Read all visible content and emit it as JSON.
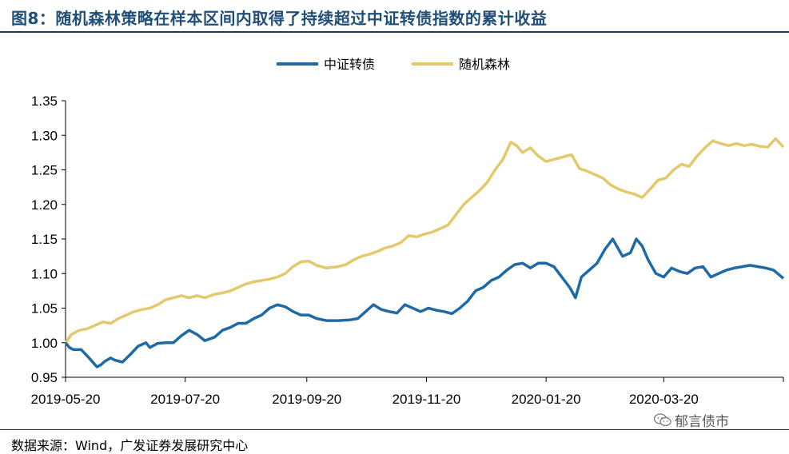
{
  "header": {
    "title": "图8：随机森林策略在样本区间内取得了持续超过中证转债指数的累计收益"
  },
  "footer": {
    "source": "数据来源：Wind，广发证券发展研究中心",
    "watermark": "郁言债市",
    "watermark_icon": "wechat-icon"
  },
  "colors": {
    "title": "#1f4e79",
    "rule": "#1f3864",
    "series_blue": "#1f6aa5",
    "series_gold": "#e3c96b"
  },
  "chart_data": {
    "type": "line",
    "title": "",
    "xlabel": "",
    "ylabel": "",
    "ylim": [
      0.95,
      1.35
    ],
    "yticks": [
      0.95,
      1.0,
      1.05,
      1.1,
      1.15,
      1.2,
      1.25,
      1.3,
      1.35
    ],
    "ytick_labels": [
      "0.95",
      "1.00",
      "1.05",
      "1.10",
      "1.15",
      "1.20",
      "1.25",
      "1.30",
      "1.35"
    ],
    "xlim": [
      "2019-05-20",
      "2020-05-20"
    ],
    "xticks": [
      "2019-05-20",
      "2019-07-20",
      "2019-09-20",
      "2019-11-20",
      "2020-01-20",
      "2020-03-20"
    ],
    "grid": false,
    "legend_position": "top-center",
    "series": [
      {
        "name": "中证转债",
        "color": "#1f6aa5",
        "points": [
          [
            "2019-05-20",
            1.0
          ],
          [
            "2019-05-22",
            0.993
          ],
          [
            "2019-05-24",
            0.99
          ],
          [
            "2019-05-28",
            0.99
          ],
          [
            "2019-06-01",
            0.978
          ],
          [
            "2019-06-05",
            0.965
          ],
          [
            "2019-06-07",
            0.968
          ],
          [
            "2019-06-09",
            0.973
          ],
          [
            "2019-06-12",
            0.978
          ],
          [
            "2019-06-14",
            0.975
          ],
          [
            "2019-06-18",
            0.972
          ],
          [
            "2019-06-22",
            0.983
          ],
          [
            "2019-06-26",
            0.995
          ],
          [
            "2019-06-30",
            1.0
          ],
          [
            "2019-07-02",
            0.993
          ],
          [
            "2019-07-06",
            0.999
          ],
          [
            "2019-07-10",
            1.0
          ],
          [
            "2019-07-14",
            1.0
          ],
          [
            "2019-07-18",
            1.01
          ],
          [
            "2019-07-22",
            1.018
          ],
          [
            "2019-07-26",
            1.012
          ],
          [
            "2019-07-30",
            1.003
          ],
          [
            "2019-08-04",
            1.008
          ],
          [
            "2019-08-08",
            1.018
          ],
          [
            "2019-08-12",
            1.022
          ],
          [
            "2019-08-16",
            1.028
          ],
          [
            "2019-08-20",
            1.028
          ],
          [
            "2019-08-24",
            1.035
          ],
          [
            "2019-08-28",
            1.04
          ],
          [
            "2019-09-01",
            1.05
          ],
          [
            "2019-09-05",
            1.055
          ],
          [
            "2019-09-09",
            1.052
          ],
          [
            "2019-09-13",
            1.045
          ],
          [
            "2019-09-17",
            1.04
          ],
          [
            "2019-09-21",
            1.04
          ],
          [
            "2019-09-25",
            1.035
          ],
          [
            "2019-09-30",
            1.032
          ],
          [
            "2019-10-06",
            1.032
          ],
          [
            "2019-10-12",
            1.033
          ],
          [
            "2019-10-16",
            1.035
          ],
          [
            "2019-10-20",
            1.045
          ],
          [
            "2019-10-24",
            1.055
          ],
          [
            "2019-10-28",
            1.048
          ],
          [
            "2019-11-01",
            1.045
          ],
          [
            "2019-11-05",
            1.043
          ],
          [
            "2019-11-09",
            1.055
          ],
          [
            "2019-11-13",
            1.05
          ],
          [
            "2019-11-17",
            1.045
          ],
          [
            "2019-11-21",
            1.05
          ],
          [
            "2019-11-25",
            1.047
          ],
          [
            "2019-11-29",
            1.045
          ],
          [
            "2019-12-03",
            1.042
          ],
          [
            "2019-12-07",
            1.05
          ],
          [
            "2019-12-11",
            1.06
          ],
          [
            "2019-12-15",
            1.075
          ],
          [
            "2019-12-19",
            1.08
          ],
          [
            "2019-12-23",
            1.09
          ],
          [
            "2019-12-27",
            1.095
          ],
          [
            "2019-12-31",
            1.105
          ],
          [
            "2020-01-04",
            1.113
          ],
          [
            "2020-01-08",
            1.115
          ],
          [
            "2020-01-12",
            1.108
          ],
          [
            "2020-01-16",
            1.115
          ],
          [
            "2020-01-20",
            1.115
          ],
          [
            "2020-01-24",
            1.11
          ],
          [
            "2020-02-01",
            1.08
          ],
          [
            "2020-02-04",
            1.065
          ],
          [
            "2020-02-07",
            1.095
          ],
          [
            "2020-02-11",
            1.105
          ],
          [
            "2020-02-15",
            1.115
          ],
          [
            "2020-02-19",
            1.135
          ],
          [
            "2020-02-23",
            1.15
          ],
          [
            "2020-02-25",
            1.14
          ],
          [
            "2020-02-28",
            1.125
          ],
          [
            "2020-03-03",
            1.13
          ],
          [
            "2020-03-06",
            1.15
          ],
          [
            "2020-03-09",
            1.14
          ],
          [
            "2020-03-12",
            1.12
          ],
          [
            "2020-03-16",
            1.1
          ],
          [
            "2020-03-20",
            1.095
          ],
          [
            "2020-03-24",
            1.108
          ],
          [
            "2020-03-28",
            1.103
          ],
          [
            "2020-04-01",
            1.1
          ],
          [
            "2020-04-05",
            1.108
          ],
          [
            "2020-04-09",
            1.11
          ],
          [
            "2020-04-13",
            1.095
          ],
          [
            "2020-04-17",
            1.1
          ],
          [
            "2020-04-21",
            1.105
          ],
          [
            "2020-04-25",
            1.108
          ],
          [
            "2020-04-29",
            1.11
          ],
          [
            "2020-05-03",
            1.112
          ],
          [
            "2020-05-07",
            1.11
          ],
          [
            "2020-05-11",
            1.108
          ],
          [
            "2020-05-15",
            1.105
          ],
          [
            "2020-05-20",
            1.093
          ]
        ]
      },
      {
        "name": "随机森林",
        "color": "#e3c96b",
        "points": [
          [
            "2019-05-20",
            1.0
          ],
          [
            "2019-05-23",
            1.012
          ],
          [
            "2019-05-27",
            1.018
          ],
          [
            "2019-05-31",
            1.02
          ],
          [
            "2019-06-04",
            1.025
          ],
          [
            "2019-06-08",
            1.03
          ],
          [
            "2019-06-12",
            1.028
          ],
          [
            "2019-06-16",
            1.035
          ],
          [
            "2019-06-20",
            1.04
          ],
          [
            "2019-06-24",
            1.045
          ],
          [
            "2019-06-28",
            1.048
          ],
          [
            "2019-07-02",
            1.05
          ],
          [
            "2019-07-06",
            1.055
          ],
          [
            "2019-07-10",
            1.062
          ],
          [
            "2019-07-14",
            1.065
          ],
          [
            "2019-07-18",
            1.068
          ],
          [
            "2019-07-22",
            1.065
          ],
          [
            "2019-07-26",
            1.068
          ],
          [
            "2019-07-30",
            1.065
          ],
          [
            "2019-08-04",
            1.07
          ],
          [
            "2019-08-08",
            1.072
          ],
          [
            "2019-08-12",
            1.075
          ],
          [
            "2019-08-16",
            1.08
          ],
          [
            "2019-08-20",
            1.085
          ],
          [
            "2019-08-24",
            1.088
          ],
          [
            "2019-08-28",
            1.09
          ],
          [
            "2019-09-01",
            1.092
          ],
          [
            "2019-09-05",
            1.095
          ],
          [
            "2019-09-09",
            1.1
          ],
          [
            "2019-09-13",
            1.11
          ],
          [
            "2019-09-17",
            1.117
          ],
          [
            "2019-09-21",
            1.118
          ],
          [
            "2019-09-25",
            1.112
          ],
          [
            "2019-09-30",
            1.108
          ],
          [
            "2019-10-06",
            1.11
          ],
          [
            "2019-10-10",
            1.113
          ],
          [
            "2019-10-14",
            1.12
          ],
          [
            "2019-10-18",
            1.125
          ],
          [
            "2019-10-22",
            1.128
          ],
          [
            "2019-10-26",
            1.132
          ],
          [
            "2019-10-30",
            1.137
          ],
          [
            "2019-11-03",
            1.14
          ],
          [
            "2019-11-07",
            1.145
          ],
          [
            "2019-11-11",
            1.155
          ],
          [
            "2019-11-15",
            1.153
          ],
          [
            "2019-11-19",
            1.157
          ],
          [
            "2019-11-23",
            1.16
          ],
          [
            "2019-11-27",
            1.165
          ],
          [
            "2019-12-01",
            1.17
          ],
          [
            "2019-12-05",
            1.185
          ],
          [
            "2019-12-09",
            1.2
          ],
          [
            "2019-12-13",
            1.21
          ],
          [
            "2019-12-17",
            1.22
          ],
          [
            "2019-12-21",
            1.232
          ],
          [
            "2019-12-25",
            1.25
          ],
          [
            "2019-12-29",
            1.265
          ],
          [
            "2020-01-02",
            1.29
          ],
          [
            "2020-01-05",
            1.285
          ],
          [
            "2020-01-08",
            1.275
          ],
          [
            "2020-01-12",
            1.282
          ],
          [
            "2020-01-16",
            1.27
          ],
          [
            "2020-01-20",
            1.262
          ],
          [
            "2020-01-24",
            1.265
          ],
          [
            "2020-02-02",
            1.272
          ],
          [
            "2020-02-06",
            1.252
          ],
          [
            "2020-02-10",
            1.248
          ],
          [
            "2020-02-14",
            1.243
          ],
          [
            "2020-02-18",
            1.238
          ],
          [
            "2020-02-22",
            1.228
          ],
          [
            "2020-02-26",
            1.222
          ],
          [
            "2020-03-01",
            1.218
          ],
          [
            "2020-03-05",
            1.215
          ],
          [
            "2020-03-09",
            1.21
          ],
          [
            "2020-03-13",
            1.222
          ],
          [
            "2020-03-17",
            1.235
          ],
          [
            "2020-03-21",
            1.238
          ],
          [
            "2020-03-25",
            1.25
          ],
          [
            "2020-03-29",
            1.258
          ],
          [
            "2020-04-02",
            1.255
          ],
          [
            "2020-04-06",
            1.27
          ],
          [
            "2020-04-10",
            1.282
          ],
          [
            "2020-04-14",
            1.292
          ],
          [
            "2020-04-18",
            1.288
          ],
          [
            "2020-04-22",
            1.285
          ],
          [
            "2020-04-26",
            1.288
          ],
          [
            "2020-04-30",
            1.285
          ],
          [
            "2020-05-04",
            1.287
          ],
          [
            "2020-05-08",
            1.284
          ],
          [
            "2020-05-12",
            1.283
          ],
          [
            "2020-05-16",
            1.295
          ],
          [
            "2020-05-20",
            1.283
          ]
        ]
      }
    ]
  }
}
